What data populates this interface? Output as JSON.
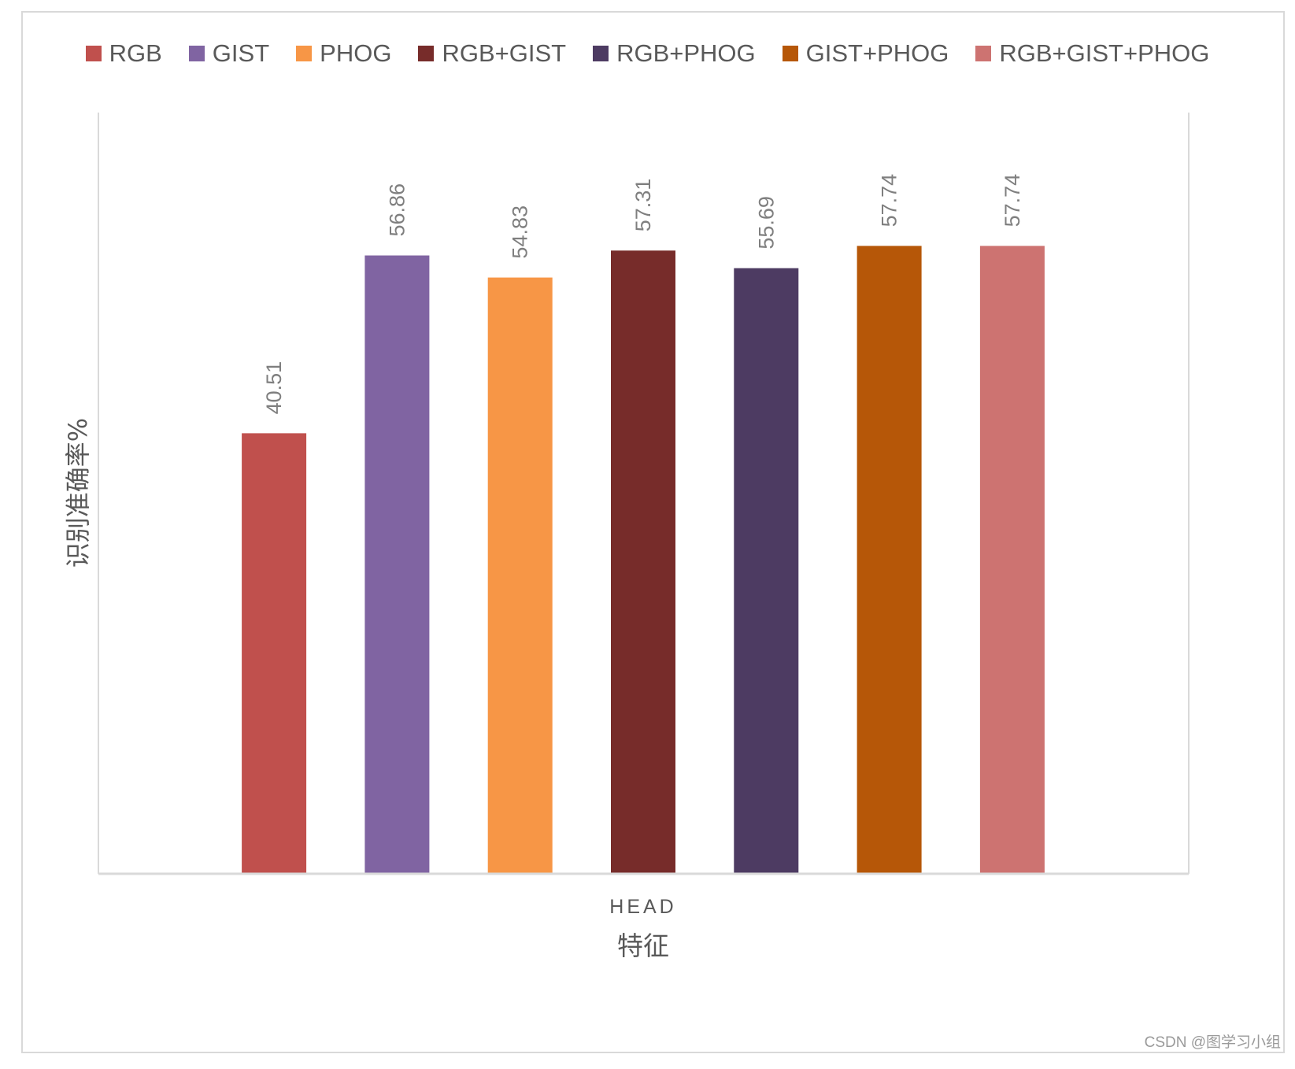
{
  "chart_data": {
    "type": "bar",
    "title": "",
    "categories": [
      "HEAD"
    ],
    "series": [
      {
        "name": "RGB",
        "values": [
          40.51
        ],
        "color": "#C0504D"
      },
      {
        "name": "GIST",
        "values": [
          56.86
        ],
        "color": "#8064A2"
      },
      {
        "name": "PHOG",
        "values": [
          54.83
        ],
        "color": "#F79646"
      },
      {
        "name": "RGB+GIST",
        "values": [
          57.31
        ],
        "color": "#772C2A"
      },
      {
        "name": "RGB+PHOG",
        "values": [
          55.69
        ],
        "color": "#4D3B62"
      },
      {
        "name": "GIST+PHOG",
        "values": [
          57.74
        ],
        "color": "#B65708"
      },
      {
        "name": "RGB+GIST+PHOG",
        "values": [
          57.74
        ],
        "color": "#CD7371"
      }
    ],
    "xlabel": "特征",
    "ylabel": "识别准确率%",
    "ylim": [
      0,
      70
    ],
    "grid": false,
    "legend_position": "top"
  },
  "watermark": "CSDN @图学习小组"
}
